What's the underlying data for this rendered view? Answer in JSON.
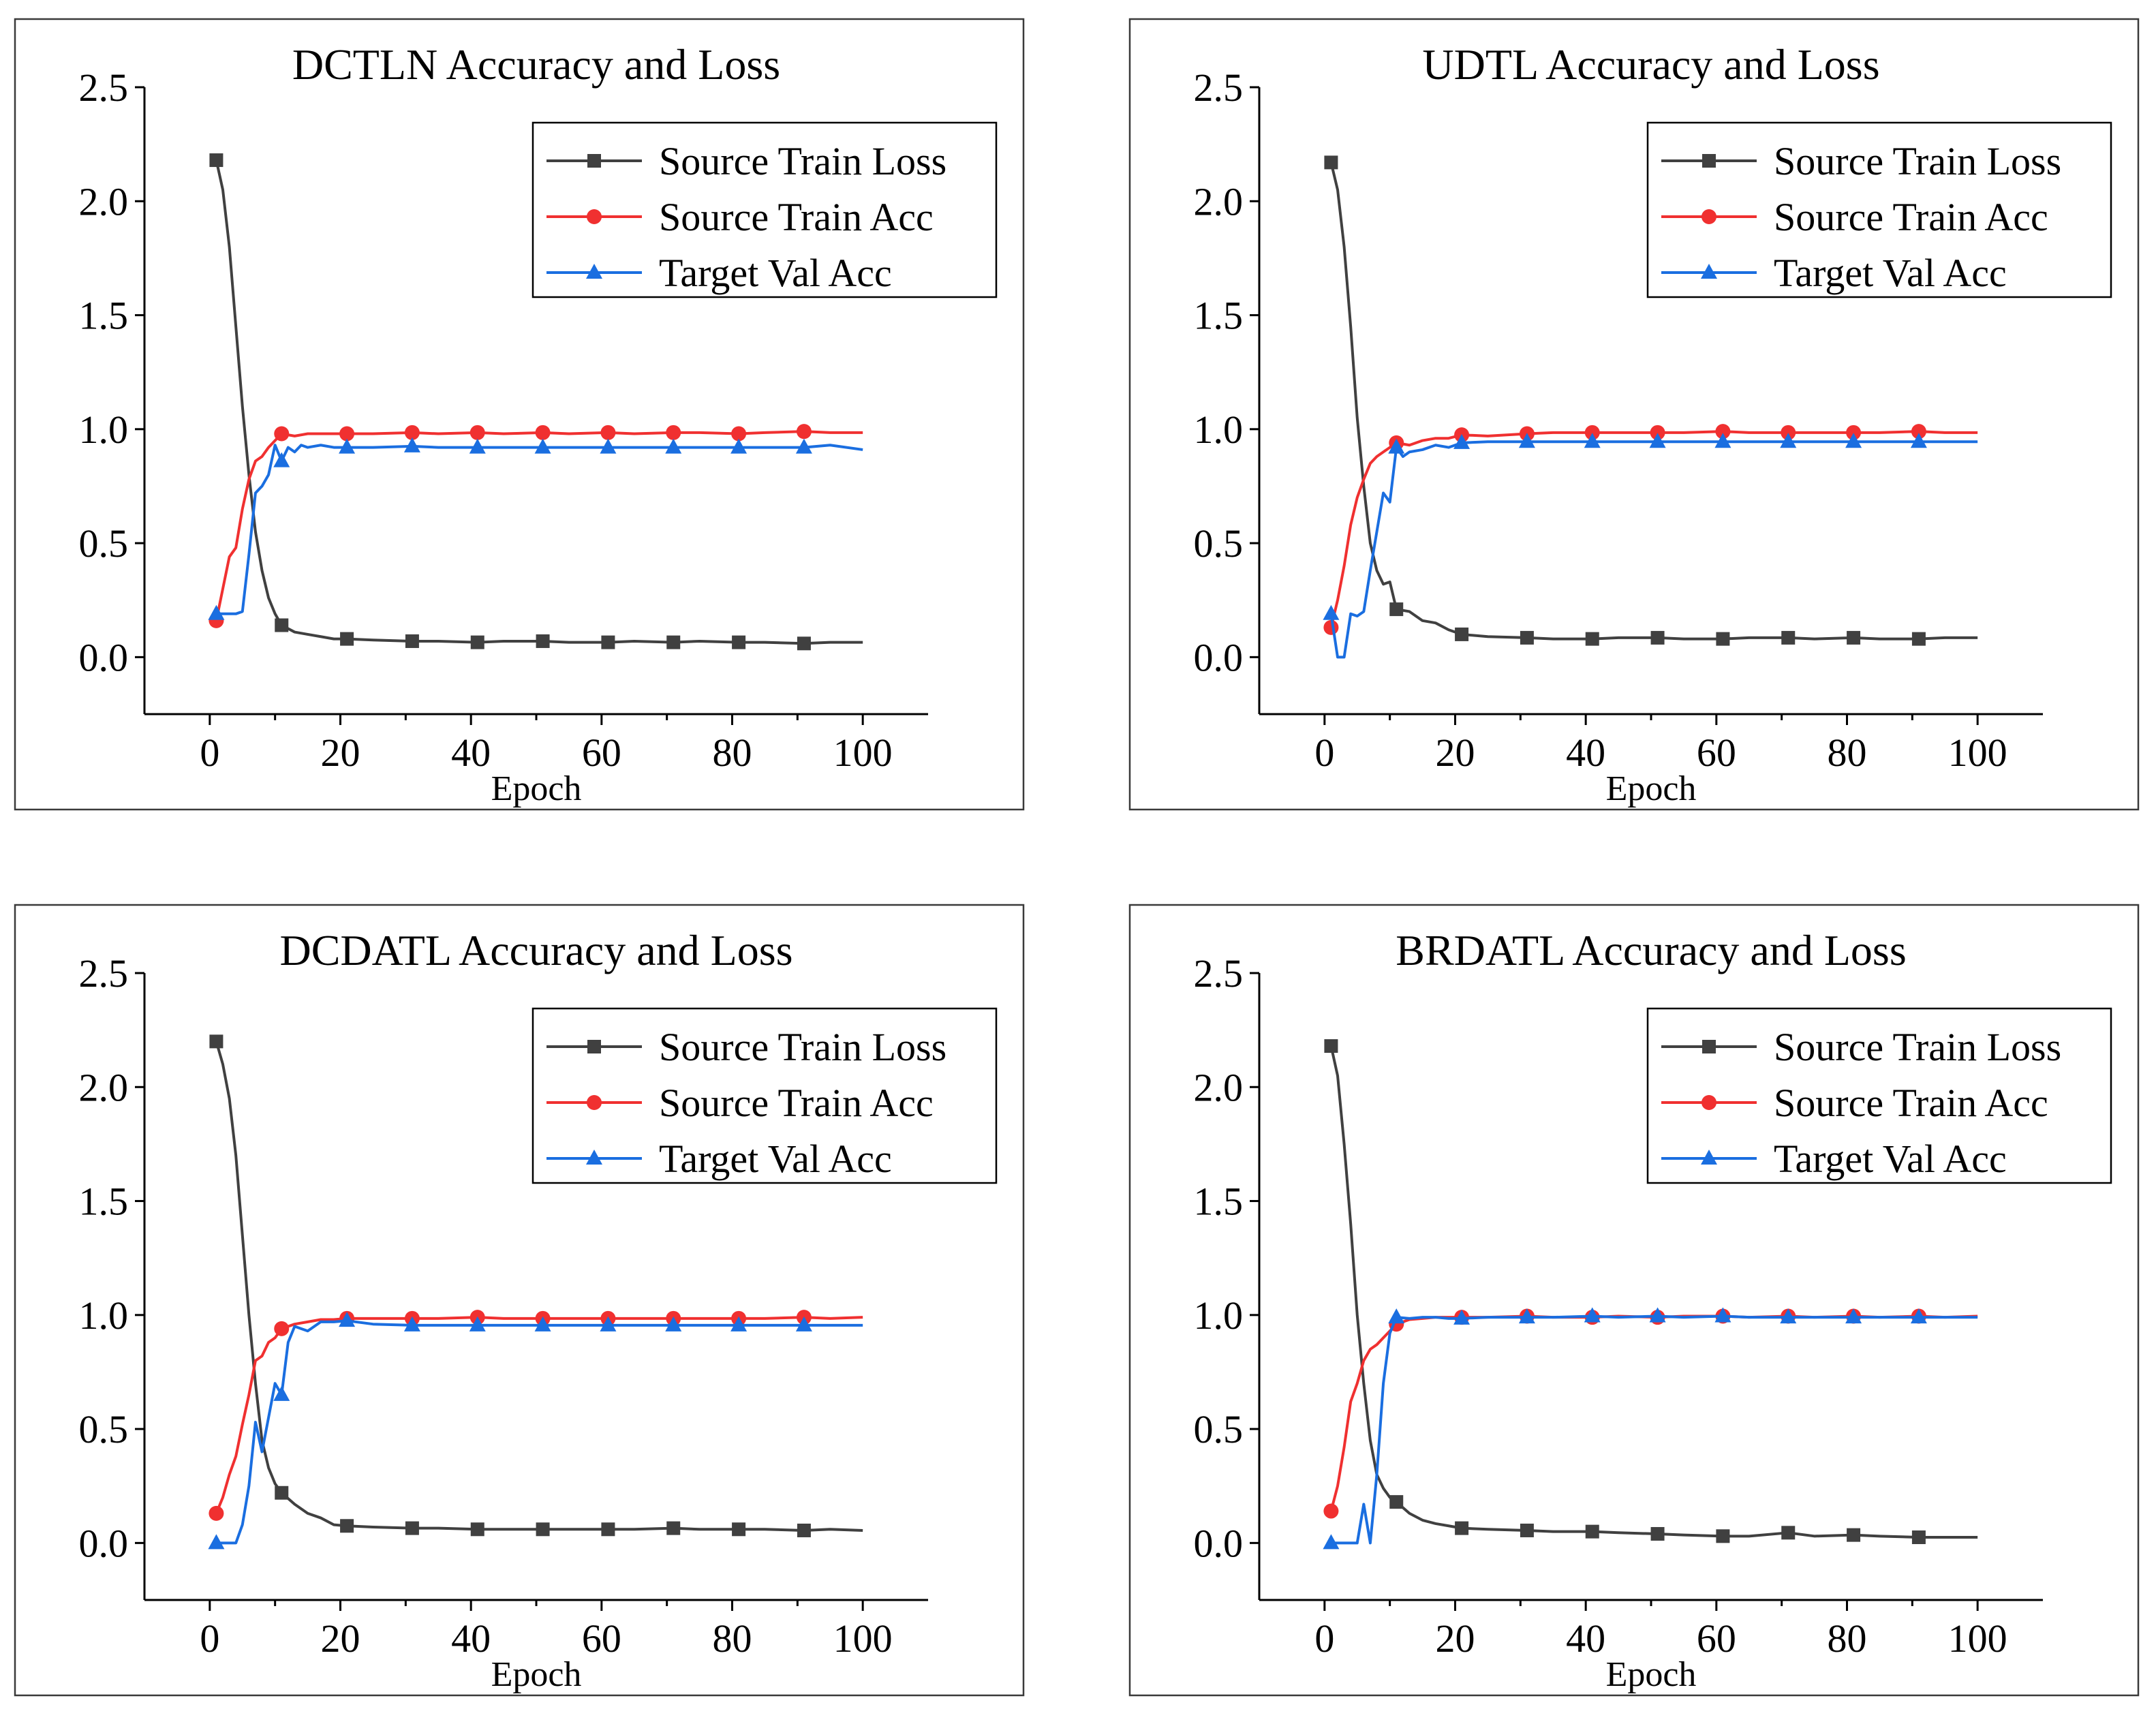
{
  "chart_data": [
    {
      "type": "line",
      "title": "DCTLN Accuracy and Loss",
      "xlabel": "Epoch",
      "ylabel": "",
      "xlim": [
        -10,
        110
      ],
      "ylim": [
        -0.25,
        2.5
      ],
      "xticks": [
        "0",
        "20",
        "40",
        "60",
        "80",
        "100"
      ],
      "yticks": [
        "0.0",
        "0.5",
        "1.0",
        "1.5",
        "2.0",
        "2.5"
      ],
      "legend_position": "top-right",
      "series": [
        {
          "name": "Source Train Loss",
          "color": "#404040",
          "marker": "square",
          "x": [
            1,
            2,
            3,
            4,
            5,
            6,
            7,
            8,
            9,
            10,
            11,
            13,
            15,
            17,
            19,
            21,
            25,
            31,
            35,
            41,
            45,
            51,
            55,
            61,
            65,
            71,
            75,
            81,
            85,
            91,
            95,
            100
          ],
          "y": [
            2.18,
            2.05,
            1.8,
            1.45,
            1.1,
            0.8,
            0.55,
            0.38,
            0.26,
            0.19,
            0.14,
            0.11,
            0.1,
            0.09,
            0.08,
            0.08,
            0.075,
            0.07,
            0.07,
            0.065,
            0.07,
            0.07,
            0.065,
            0.065,
            0.07,
            0.065,
            0.07,
            0.065,
            0.065,
            0.06,
            0.065,
            0.065
          ]
        },
        {
          "name": "Source Train Acc",
          "color": "#f03030",
          "marker": "circle",
          "x": [
            1,
            2,
            3,
            4,
            5,
            6,
            7,
            8,
            9,
            10,
            11,
            13,
            15,
            17,
            19,
            21,
            25,
            31,
            35,
            41,
            45,
            51,
            55,
            61,
            65,
            71,
            75,
            81,
            85,
            91,
            95,
            100
          ],
          "y": [
            0.16,
            0.3,
            0.44,
            0.48,
            0.65,
            0.78,
            0.86,
            0.88,
            0.92,
            0.95,
            0.98,
            0.97,
            0.98,
            0.98,
            0.98,
            0.98,
            0.98,
            0.985,
            0.98,
            0.985,
            0.98,
            0.985,
            0.98,
            0.985,
            0.98,
            0.985,
            0.985,
            0.98,
            0.985,
            0.99,
            0.985,
            0.985
          ]
        },
        {
          "name": "Target Val Acc",
          "color": "#1a6ee0",
          "marker": "triangle",
          "x": [
            1,
            2,
            3,
            4,
            5,
            6,
            7,
            8,
            9,
            10,
            11,
            12,
            13,
            14,
            15,
            17,
            19,
            21,
            25,
            31,
            35,
            41,
            45,
            51,
            55,
            61,
            65,
            71,
            75,
            81,
            85,
            91,
            95,
            100
          ],
          "y": [
            0.19,
            0.19,
            0.19,
            0.19,
            0.2,
            0.45,
            0.72,
            0.75,
            0.8,
            0.93,
            0.86,
            0.92,
            0.9,
            0.93,
            0.92,
            0.93,
            0.92,
            0.92,
            0.92,
            0.925,
            0.92,
            0.92,
            0.92,
            0.92,
            0.92,
            0.92,
            0.92,
            0.92,
            0.92,
            0.92,
            0.92,
            0.92,
            0.93,
            0.91
          ]
        }
      ]
    },
    {
      "type": "line",
      "title": "UDTL Accuracy and Loss",
      "xlabel": "Epoch",
      "ylabel": "",
      "xlim": [
        -10,
        110
      ],
      "ylim": [
        -0.25,
        2.5
      ],
      "xticks": [
        "0",
        "20",
        "40",
        "60",
        "80",
        "100"
      ],
      "yticks": [
        "0.0",
        "0.5",
        "1.0",
        "1.5",
        "2.0",
        "2.5"
      ],
      "legend_position": "top-right",
      "series": [
        {
          "name": "Source Train Loss",
          "color": "#404040",
          "marker": "square",
          "x": [
            1,
            2,
            3,
            4,
            5,
            6,
            7,
            8,
            9,
            10,
            11,
            13,
            15,
            17,
            19,
            21,
            25,
            31,
            35,
            41,
            45,
            51,
            55,
            61,
            65,
            71,
            75,
            81,
            85,
            91,
            95,
            100
          ],
          "y": [
            2.17,
            2.05,
            1.8,
            1.45,
            1.05,
            0.75,
            0.5,
            0.38,
            0.32,
            0.33,
            0.21,
            0.2,
            0.16,
            0.15,
            0.12,
            0.1,
            0.09,
            0.085,
            0.08,
            0.08,
            0.085,
            0.085,
            0.08,
            0.08,
            0.085,
            0.085,
            0.08,
            0.085,
            0.08,
            0.08,
            0.085,
            0.085
          ]
        },
        {
          "name": "Source Train Acc",
          "color": "#f03030",
          "marker": "circle",
          "x": [
            1,
            2,
            3,
            4,
            5,
            6,
            7,
            8,
            9,
            10,
            11,
            13,
            15,
            17,
            19,
            21,
            25,
            31,
            35,
            41,
            45,
            51,
            55,
            61,
            65,
            71,
            75,
            81,
            85,
            91,
            95,
            100
          ],
          "y": [
            0.13,
            0.25,
            0.4,
            0.58,
            0.7,
            0.78,
            0.85,
            0.88,
            0.9,
            0.92,
            0.94,
            0.93,
            0.95,
            0.96,
            0.96,
            0.975,
            0.97,
            0.98,
            0.985,
            0.985,
            0.985,
            0.985,
            0.985,
            0.99,
            0.985,
            0.985,
            0.985,
            0.985,
            0.985,
            0.99,
            0.985,
            0.985
          ]
        },
        {
          "name": "Target Val Acc",
          "color": "#1a6ee0",
          "marker": "triangle",
          "x": [
            1,
            2,
            3,
            4,
            5,
            6,
            7,
            8,
            9,
            10,
            11,
            12,
            13,
            15,
            17,
            19,
            21,
            25,
            31,
            35,
            41,
            45,
            51,
            55,
            61,
            65,
            71,
            75,
            81,
            85,
            91,
            95,
            100
          ],
          "y": [
            0.19,
            0.0,
            0.0,
            0.19,
            0.18,
            0.2,
            0.38,
            0.55,
            0.72,
            0.68,
            0.92,
            0.88,
            0.9,
            0.91,
            0.93,
            0.92,
            0.94,
            0.945,
            0.945,
            0.945,
            0.945,
            0.945,
            0.945,
            0.945,
            0.945,
            0.945,
            0.945,
            0.945,
            0.945,
            0.945,
            0.945,
            0.945,
            0.945
          ]
        }
      ]
    },
    {
      "type": "line",
      "title": "DCDATL Accuracy and Loss",
      "xlabel": "Epoch",
      "ylabel": "",
      "xlim": [
        -10,
        110
      ],
      "ylim": [
        -0.25,
        2.5
      ],
      "xticks": [
        "0",
        "20",
        "40",
        "60",
        "80",
        "100"
      ],
      "yticks": [
        "0.0",
        "0.5",
        "1.0",
        "1.5",
        "2.0",
        "2.5"
      ],
      "legend_position": "top-right",
      "series": [
        {
          "name": "Source Train Loss",
          "color": "#404040",
          "marker": "square",
          "x": [
            1,
            2,
            3,
            4,
            5,
            6,
            7,
            8,
            9,
            10,
            11,
            13,
            15,
            17,
            19,
            21,
            25,
            31,
            35,
            41,
            45,
            51,
            55,
            61,
            65,
            71,
            75,
            81,
            85,
            91,
            95,
            100
          ],
          "y": [
            2.2,
            2.1,
            1.95,
            1.7,
            1.35,
            1.0,
            0.7,
            0.45,
            0.33,
            0.26,
            0.22,
            0.17,
            0.13,
            0.11,
            0.08,
            0.075,
            0.07,
            0.065,
            0.065,
            0.06,
            0.06,
            0.06,
            0.06,
            0.06,
            0.06,
            0.065,
            0.06,
            0.06,
            0.06,
            0.055,
            0.06,
            0.055
          ]
        },
        {
          "name": "Source Train Acc",
          "color": "#f03030",
          "marker": "circle",
          "x": [
            1,
            2,
            3,
            4,
            5,
            6,
            7,
            8,
            9,
            10,
            11,
            13,
            15,
            17,
            19,
            21,
            25,
            31,
            35,
            41,
            45,
            51,
            55,
            61,
            65,
            71,
            75,
            81,
            85,
            91,
            95,
            100
          ],
          "y": [
            0.13,
            0.2,
            0.3,
            0.38,
            0.52,
            0.65,
            0.8,
            0.82,
            0.88,
            0.9,
            0.94,
            0.96,
            0.97,
            0.98,
            0.98,
            0.985,
            0.985,
            0.985,
            0.985,
            0.99,
            0.985,
            0.985,
            0.985,
            0.985,
            0.985,
            0.985,
            0.985,
            0.985,
            0.985,
            0.99,
            0.985,
            0.99
          ]
        },
        {
          "name": "Target Val Acc",
          "color": "#1a6ee0",
          "marker": "triangle",
          "x": [
            1,
            2,
            3,
            4,
            5,
            6,
            7,
            8,
            9,
            10,
            11,
            12,
            13,
            15,
            17,
            19,
            21,
            25,
            31,
            35,
            41,
            45,
            51,
            55,
            61,
            65,
            71,
            75,
            81,
            85,
            91,
            95,
            100
          ],
          "y": [
            0.0,
            0.0,
            0.0,
            0.0,
            0.08,
            0.25,
            0.53,
            0.4,
            0.55,
            0.7,
            0.65,
            0.88,
            0.95,
            0.93,
            0.97,
            0.97,
            0.975,
            0.96,
            0.955,
            0.955,
            0.955,
            0.955,
            0.955,
            0.955,
            0.955,
            0.955,
            0.955,
            0.955,
            0.955,
            0.955,
            0.955,
            0.955,
            0.955
          ]
        }
      ]
    },
    {
      "type": "line",
      "title": "BRDATL Accuracy and Loss",
      "xlabel": "Epoch",
      "ylabel": "",
      "xlim": [
        -10,
        110
      ],
      "ylim": [
        -0.25,
        2.5
      ],
      "xticks": [
        "0",
        "20",
        "40",
        "60",
        "80",
        "100"
      ],
      "yticks": [
        "0.0",
        "0.5",
        "1.0",
        "1.5",
        "2.0",
        "2.5"
      ],
      "legend_position": "top-right",
      "series": [
        {
          "name": "Source Train Loss",
          "color": "#404040",
          "marker": "square",
          "x": [
            1,
            2,
            3,
            4,
            5,
            6,
            7,
            8,
            9,
            10,
            11,
            13,
            15,
            17,
            19,
            21,
            25,
            31,
            35,
            41,
            45,
            51,
            55,
            61,
            65,
            71,
            75,
            81,
            85,
            91,
            95,
            100
          ],
          "y": [
            2.18,
            2.05,
            1.75,
            1.4,
            1.0,
            0.7,
            0.45,
            0.3,
            0.24,
            0.2,
            0.18,
            0.13,
            0.1,
            0.085,
            0.075,
            0.065,
            0.06,
            0.055,
            0.05,
            0.05,
            0.045,
            0.04,
            0.035,
            0.03,
            0.03,
            0.045,
            0.03,
            0.035,
            0.03,
            0.025,
            0.025,
            0.025
          ]
        },
        {
          "name": "Source Train Acc",
          "color": "#f03030",
          "marker": "circle",
          "x": [
            1,
            2,
            3,
            4,
            5,
            6,
            7,
            8,
            9,
            10,
            11,
            13,
            15,
            17,
            19,
            21,
            25,
            31,
            35,
            41,
            45,
            51,
            55,
            61,
            65,
            71,
            75,
            81,
            85,
            91,
            95,
            100
          ],
          "y": [
            0.14,
            0.25,
            0.42,
            0.62,
            0.7,
            0.8,
            0.85,
            0.87,
            0.9,
            0.93,
            0.96,
            0.98,
            0.985,
            0.99,
            0.99,
            0.99,
            0.99,
            0.995,
            0.99,
            0.99,
            0.995,
            0.99,
            0.995,
            0.995,
            0.99,
            0.995,
            0.99,
            0.995,
            0.99,
            0.995,
            0.99,
            0.995
          ]
        },
        {
          "name": "Target Val Acc",
          "color": "#1a6ee0",
          "marker": "triangle",
          "x": [
            1,
            2,
            3,
            4,
            5,
            6,
            7,
            8,
            9,
            10,
            11,
            13,
            15,
            17,
            19,
            21,
            25,
            31,
            35,
            41,
            45,
            51,
            55,
            61,
            65,
            71,
            75,
            81,
            85,
            91,
            95,
            100
          ],
          "y": [
            0.0,
            0.0,
            0.0,
            0.0,
            0.0,
            0.17,
            0.0,
            0.3,
            0.7,
            0.92,
            0.99,
            0.985,
            0.99,
            0.99,
            0.985,
            0.985,
            0.99,
            0.99,
            0.99,
            0.995,
            0.99,
            0.995,
            0.99,
            0.995,
            0.99,
            0.99,
            0.99,
            0.99,
            0.99,
            0.99,
            0.99,
            0.99
          ]
        }
      ]
    }
  ]
}
